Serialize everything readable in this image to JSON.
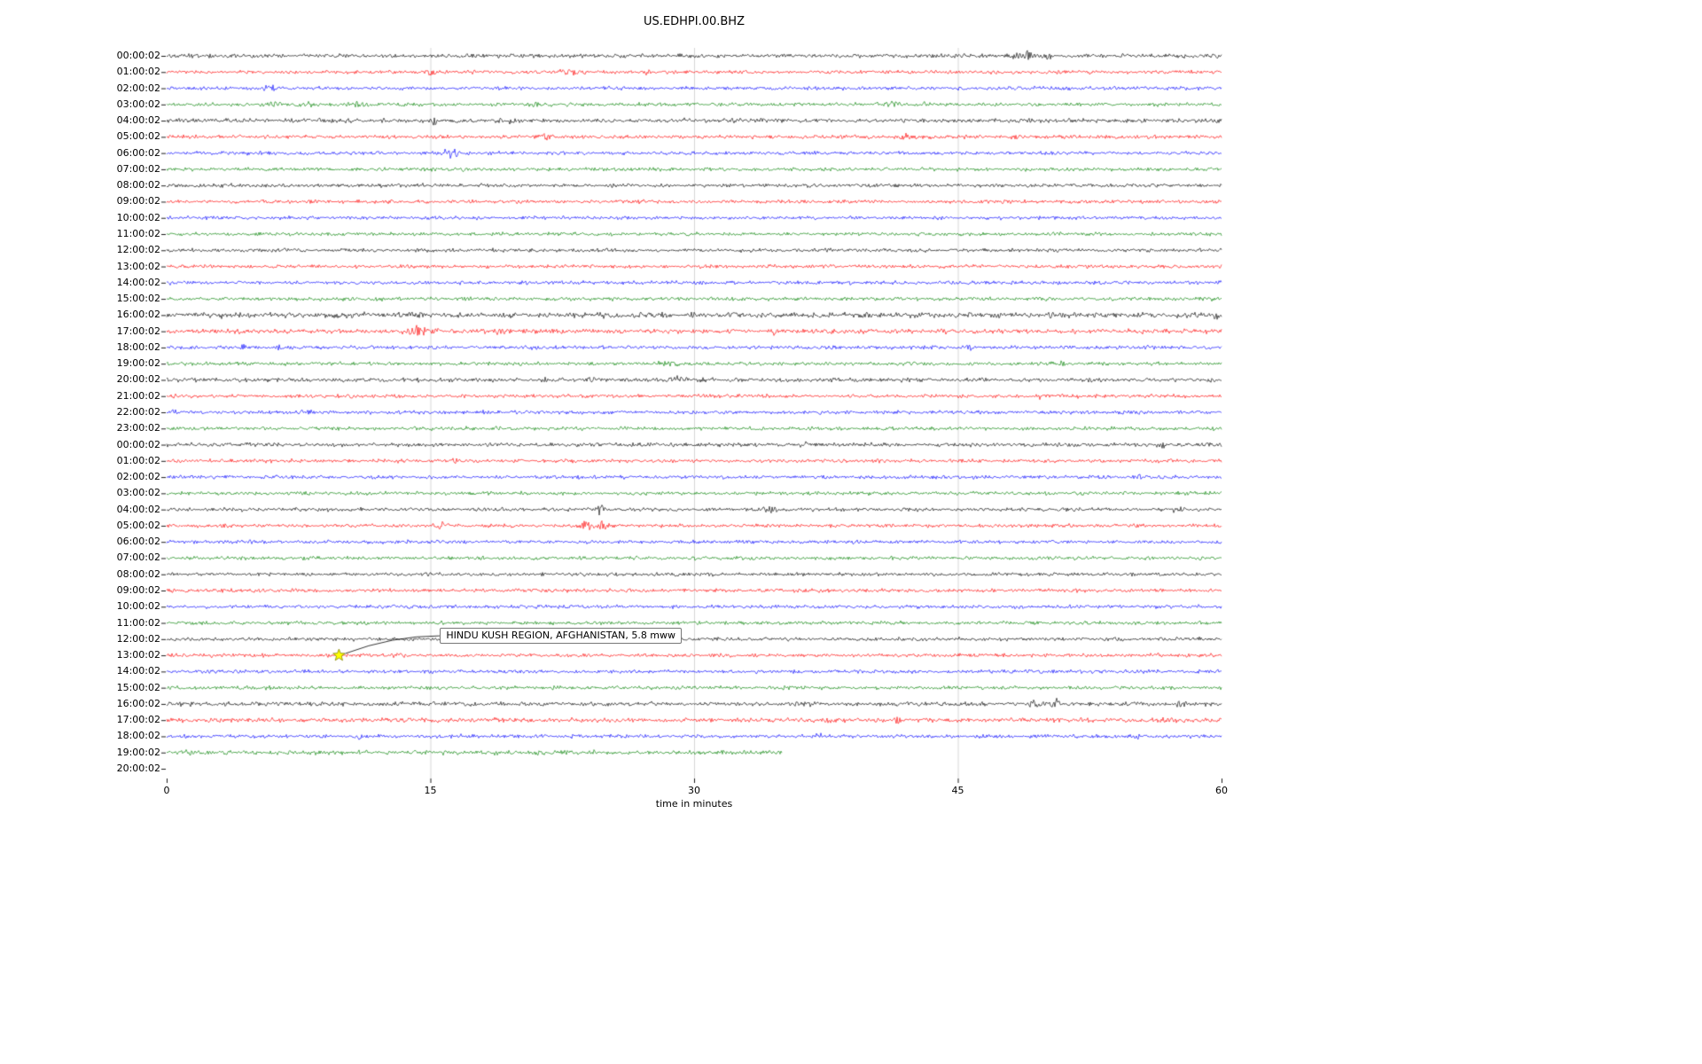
{
  "title": "US.EDHPI.00.BHZ",
  "chart_data": {
    "type": "line",
    "subtype": "helicorder-dayplot",
    "title": "US.EDHPI.00.BHZ",
    "xlabel": "time in minutes",
    "ylabel": "",
    "xlim": [
      0,
      60
    ],
    "x_ticks": [
      0,
      15,
      30,
      45,
      60
    ],
    "x_gridlines": [
      15,
      30,
      45
    ],
    "grid": true,
    "trace_colors_cycle": [
      "#000000",
      "#ff0000",
      "#0000ff",
      "#008000"
    ],
    "rows": [
      {
        "label": "00:00:02",
        "color": "#000000"
      },
      {
        "label": "01:00:02",
        "color": "#ff0000"
      },
      {
        "label": "02:00:02",
        "color": "#0000ff"
      },
      {
        "label": "03:00:02",
        "color": "#008000"
      },
      {
        "label": "04:00:02",
        "color": "#000000"
      },
      {
        "label": "05:00:02",
        "color": "#ff0000"
      },
      {
        "label": "06:00:02",
        "color": "#0000ff"
      },
      {
        "label": "07:00:02",
        "color": "#008000"
      },
      {
        "label": "08:00:02",
        "color": "#000000"
      },
      {
        "label": "09:00:02",
        "color": "#ff0000"
      },
      {
        "label": "10:00:02",
        "color": "#0000ff"
      },
      {
        "label": "11:00:02",
        "color": "#008000"
      },
      {
        "label": "12:00:02",
        "color": "#000000"
      },
      {
        "label": "13:00:02",
        "color": "#ff0000"
      },
      {
        "label": "14:00:02",
        "color": "#0000ff"
      },
      {
        "label": "15:00:02",
        "color": "#008000"
      },
      {
        "label": "16:00:02",
        "color": "#000000"
      },
      {
        "label": "17:00:02",
        "color": "#ff0000"
      },
      {
        "label": "18:00:02",
        "color": "#0000ff"
      },
      {
        "label": "19:00:02",
        "color": "#008000"
      },
      {
        "label": "20:00:02",
        "color": "#000000"
      },
      {
        "label": "21:00:02",
        "color": "#ff0000"
      },
      {
        "label": "22:00:02",
        "color": "#0000ff"
      },
      {
        "label": "23:00:02",
        "color": "#008000"
      },
      {
        "label": "00:00:02",
        "color": "#000000"
      },
      {
        "label": "01:00:02",
        "color": "#ff0000"
      },
      {
        "label": "02:00:02",
        "color": "#0000ff"
      },
      {
        "label": "03:00:02",
        "color": "#008000"
      },
      {
        "label": "04:00:02",
        "color": "#000000"
      },
      {
        "label": "05:00:02",
        "color": "#ff0000"
      },
      {
        "label": "06:00:02",
        "color": "#0000ff"
      },
      {
        "label": "07:00:02",
        "color": "#008000"
      },
      {
        "label": "08:00:02",
        "color": "#000000"
      },
      {
        "label": "09:00:02",
        "color": "#ff0000"
      },
      {
        "label": "10:00:02",
        "color": "#0000ff"
      },
      {
        "label": "11:00:02",
        "color": "#008000"
      },
      {
        "label": "12:00:02",
        "color": "#000000"
      },
      {
        "label": "13:00:02",
        "color": "#ff0000"
      },
      {
        "label": "14:00:02",
        "color": "#0000ff"
      },
      {
        "label": "15:00:02",
        "color": "#008000"
      },
      {
        "label": "16:00:02",
        "color": "#000000"
      },
      {
        "label": "17:00:02",
        "color": "#ff0000"
      },
      {
        "label": "18:00:02",
        "color": "#0000ff"
      },
      {
        "label": "19:00:02",
        "color": "#008000",
        "end_minute": 35
      },
      {
        "label": "20:00:02",
        "color": null
      }
    ],
    "noise_amp_overrides": {
      "0": 1.25,
      "4": 1.3,
      "16": 1.7,
      "17": 1.4,
      "20": 1.25,
      "24": 1.2,
      "40": 1.3,
      "41": 1.35,
      "43": 1.3
    },
    "events": [
      {
        "r": 0,
        "m": 48.8,
        "a": 5,
        "d": 1.4
      },
      {
        "r": 0,
        "m": 50.1,
        "a": 4,
        "d": 0.9
      },
      {
        "r": 1,
        "m": 15.0,
        "a": 3.5,
        "d": 0.7
      },
      {
        "r": 1,
        "m": 22.9,
        "a": 3,
        "d": 1.4
      },
      {
        "r": 1,
        "m": 27.4,
        "a": 2.2,
        "d": 0.7
      },
      {
        "r": 2,
        "m": 6.0,
        "a": 4,
        "d": 0.8
      },
      {
        "r": 2,
        "m": 25.0,
        "a": 3,
        "d": 0.4
      },
      {
        "r": 3,
        "m": 6.2,
        "a": 3,
        "d": 1.2
      },
      {
        "r": 3,
        "m": 8.2,
        "a": 2.6,
        "d": 1.6
      },
      {
        "r": 3,
        "m": 11.0,
        "a": 2.6,
        "d": 1.2
      },
      {
        "r": 3,
        "m": 20.8,
        "a": 3.5,
        "d": 1.2
      },
      {
        "r": 3,
        "m": 41.3,
        "a": 3.5,
        "d": 1.6
      },
      {
        "r": 3,
        "m": 43.0,
        "a": 2.5,
        "d": 0.8
      },
      {
        "r": 4,
        "m": 15.3,
        "a": 9,
        "d": 0.35
      },
      {
        "r": 4,
        "m": 19.5,
        "a": 2,
        "d": 3
      },
      {
        "r": 4,
        "m": 23.0,
        "a": 2,
        "d": 2
      },
      {
        "r": 4,
        "m": 29.6,
        "a": 2.5,
        "d": 0.5
      },
      {
        "r": 5,
        "m": 21.5,
        "a": 3.5,
        "d": 0.8
      },
      {
        "r": 5,
        "m": 42.0,
        "a": 3,
        "d": 1.4
      },
      {
        "r": 5,
        "m": 48.3,
        "a": 3,
        "d": 0.8
      },
      {
        "r": 6,
        "m": 15.7,
        "a": 5,
        "d": 0.4
      },
      {
        "r": 6,
        "m": 16.3,
        "a": 11,
        "d": 0.5
      },
      {
        "r": 7,
        "m": 17.0,
        "a": 2,
        "d": 0.5
      },
      {
        "r": 16,
        "m": 14.4,
        "a": 4,
        "d": 0.7
      },
      {
        "r": 16,
        "m": 50.2,
        "a": 3,
        "d": 0.5
      },
      {
        "r": 16,
        "m": 54.1,
        "a": 4,
        "d": 0.8
      },
      {
        "r": 16,
        "m": 59.6,
        "a": 4,
        "d": 0.7
      },
      {
        "r": 17,
        "m": 14.3,
        "a": 6,
        "d": 1.2
      },
      {
        "r": 17,
        "m": 15.3,
        "a": 5,
        "d": 0.6
      },
      {
        "r": 17,
        "m": 19.0,
        "a": 4,
        "d": 0.7
      },
      {
        "r": 17,
        "m": 34.5,
        "a": 3,
        "d": 1.0
      },
      {
        "r": 17,
        "m": 44.2,
        "a": 2.5,
        "d": 0.6
      },
      {
        "r": 17,
        "m": 55.5,
        "a": 3,
        "d": 0.4
      },
      {
        "r": 18,
        "m": 4.4,
        "a": 3,
        "d": 0.5
      },
      {
        "r": 18,
        "m": 6.4,
        "a": 3,
        "d": 0.4
      },
      {
        "r": 18,
        "m": 21.0,
        "a": 2,
        "d": 0.3
      },
      {
        "r": 18,
        "m": 45.7,
        "a": 3.5,
        "d": 0.5
      },
      {
        "r": 19,
        "m": 23.0,
        "a": 2,
        "d": 0.5
      },
      {
        "r": 19,
        "m": 28.6,
        "a": 4,
        "d": 1.1
      },
      {
        "r": 19,
        "m": 51.0,
        "a": 2.2,
        "d": 0.5
      },
      {
        "r": 20,
        "m": 21.5,
        "a": 3,
        "d": 0.8
      },
      {
        "r": 20,
        "m": 24.1,
        "a": 3,
        "d": 0.8
      },
      {
        "r": 20,
        "m": 29.0,
        "a": 3,
        "d": 1.0
      },
      {
        "r": 21,
        "m": 24.7,
        "a": 2.5,
        "d": 1.0
      },
      {
        "r": 21,
        "m": 49.7,
        "a": 3,
        "d": 0.5
      },
      {
        "r": 22,
        "m": 0.3,
        "a": 4,
        "d": 0.4
      },
      {
        "r": 22,
        "m": 8.0,
        "a": 2.5,
        "d": 1.0
      },
      {
        "r": 22,
        "m": 37.1,
        "a": 4,
        "d": 0.4
      },
      {
        "r": 24,
        "m": 23.3,
        "a": 2.5,
        "d": 0.3
      },
      {
        "r": 24,
        "m": 36.4,
        "a": 2.5,
        "d": 0.4
      },
      {
        "r": 24,
        "m": 48.6,
        "a": 2.5,
        "d": 0.4
      },
      {
        "r": 24,
        "m": 56.7,
        "a": 3,
        "d": 0.5
      },
      {
        "r": 25,
        "m": 16.5,
        "a": 2.5,
        "d": 0.6
      },
      {
        "r": 26,
        "m": 55.4,
        "a": 4,
        "d": 0.35
      },
      {
        "r": 28,
        "m": 24.7,
        "a": 8,
        "d": 0.4
      },
      {
        "r": 28,
        "m": 34.3,
        "a": 4,
        "d": 0.9
      },
      {
        "r": 28,
        "m": 57.6,
        "a": 3,
        "d": 0.8
      },
      {
        "r": 29,
        "m": 15.6,
        "a": 4,
        "d": 0.8
      },
      {
        "r": 29,
        "m": 23.9,
        "a": 7,
        "d": 0.8
      },
      {
        "r": 29,
        "m": 24.8,
        "a": 7,
        "d": 0.6
      },
      {
        "r": 37,
        "m": 13.0,
        "a": 1.8,
        "d": 1.5
      },
      {
        "r": 40,
        "m": 49.4,
        "a": 6,
        "d": 0.9
      },
      {
        "r": 40,
        "m": 50.5,
        "a": 5,
        "d": 0.7
      },
      {
        "r": 40,
        "m": 57.7,
        "a": 3.5,
        "d": 0.8
      },
      {
        "r": 41,
        "m": 37.8,
        "a": 2.5,
        "d": 1.0
      },
      {
        "r": 41,
        "m": 41.6,
        "a": 3,
        "d": 0.8
      },
      {
        "r": 41,
        "m": 50.6,
        "a": 2.5,
        "d": 0.6
      },
      {
        "r": 42,
        "m": 11.0,
        "a": 4,
        "d": 0.35
      },
      {
        "r": 42,
        "m": 16.8,
        "a": 2.5,
        "d": 0.4
      },
      {
        "r": 42,
        "m": 37.1,
        "a": 5,
        "d": 0.45
      },
      {
        "r": 42,
        "m": 55.2,
        "a": 2.5,
        "d": 0.4
      },
      {
        "r": 43,
        "m": 1.2,
        "a": 2,
        "d": 2.0
      },
      {
        "r": 43,
        "m": 18.6,
        "a": 2,
        "d": 0.5
      },
      {
        "r": 43,
        "m": 28.8,
        "a": 2.5,
        "d": 0.5
      }
    ],
    "annotation": {
      "text": "HINDU KUSH REGION, AFGHANISTAN, 5.8 mww",
      "row_label": "13:00:02",
      "row_index": 37,
      "minute": 9.8,
      "marker": "yellow-star",
      "marker_color": "#ffff00"
    }
  }
}
